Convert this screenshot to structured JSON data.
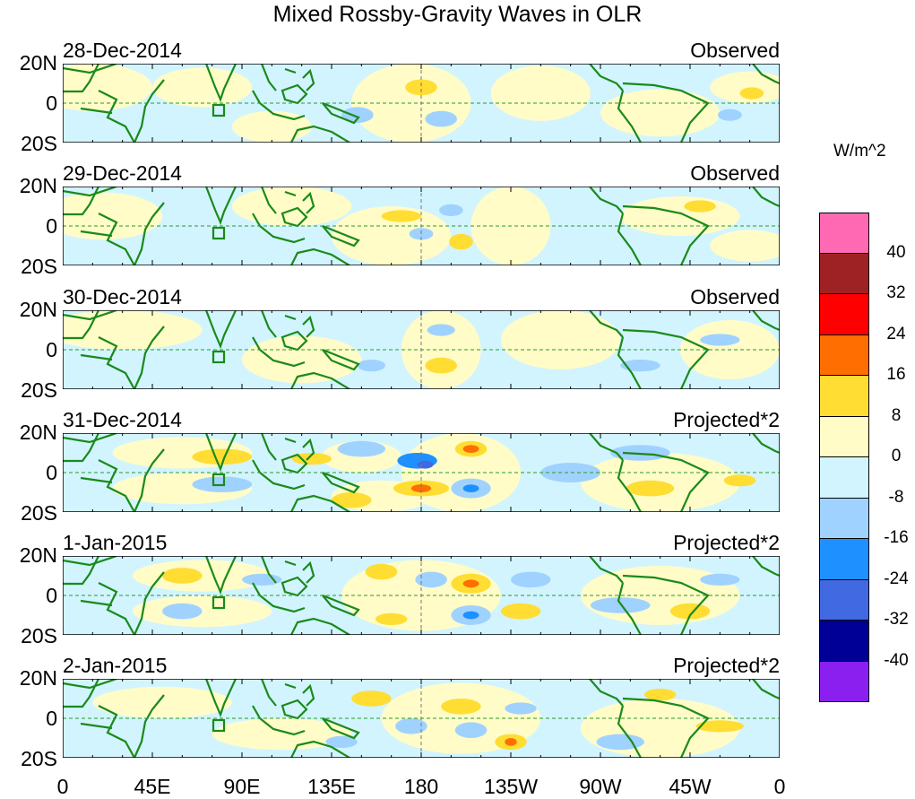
{
  "chart_data": {
    "type": "heatmap",
    "title": "Mixed Rossby-Gravity Waves in OLR",
    "units": "W/m^2",
    "xticks": [
      "0",
      "45E",
      "90E",
      "135E",
      "180",
      "135W",
      "90W",
      "45W",
      "0"
    ],
    "yticks": [
      "20N",
      "0",
      "20S"
    ],
    "xlim": [
      0,
      360
    ],
    "ylim": [
      -20,
      20
    ],
    "colorbar": {
      "levels": [
        "40",
        "32",
        "24",
        "16",
        "8",
        "0",
        "-8",
        "-16",
        "-24",
        "-32",
        "-40"
      ],
      "colors": [
        "#FF69B4",
        "#9E2224",
        "#FF0000",
        "#FF6E00",
        "#FFDD33",
        "#FFFCC8",
        "#D2F4FF",
        "#A0D2FF",
        "#1E90FF",
        "#4169E1",
        "#000096",
        "#8B1FF0"
      ]
    },
    "panels": [
      {
        "date": "28-Dec-2014",
        "type": "Observed",
        "blobs": [
          [
            15,
            8,
            30,
            12,
            4
          ],
          [
            70,
            8,
            25,
            10,
            4
          ],
          [
            105,
            -12,
            20,
            8,
            4
          ],
          [
            175,
            0,
            30,
            20,
            4
          ],
          [
            240,
            5,
            25,
            14,
            4
          ],
          [
            300,
            -5,
            30,
            12,
            4
          ],
          [
            345,
            8,
            20,
            8,
            4
          ],
          [
            180,
            8,
            8,
            4,
            12
          ],
          [
            190,
            -8,
            8,
            4,
            -10
          ],
          [
            148,
            -6,
            8,
            4,
            -10
          ],
          [
            346,
            5,
            6,
            3,
            12
          ],
          [
            335,
            -6,
            6,
            3,
            -10
          ]
        ]
      },
      {
        "date": "29-Dec-2014",
        "type": "Observed",
        "blobs": [
          [
            20,
            5,
            30,
            12,
            4
          ],
          [
            115,
            10,
            30,
            10,
            4
          ],
          [
            165,
            -5,
            30,
            15,
            4
          ],
          [
            225,
            0,
            20,
            20,
            4
          ],
          [
            310,
            5,
            30,
            10,
            4
          ],
          [
            345,
            -10,
            20,
            8,
            4
          ],
          [
            170,
            5,
            10,
            3,
            12
          ],
          [
            195,
            8,
            6,
            3,
            -10
          ],
          [
            200,
            -8,
            6,
            4,
            12
          ],
          [
            180,
            -4,
            6,
            3,
            -10
          ],
          [
            320,
            10,
            8,
            3,
            12
          ]
        ]
      },
      {
        "date": "30-Dec-2014",
        "type": "Observed",
        "blobs": [
          [
            30,
            10,
            40,
            10,
            4
          ],
          [
            120,
            -5,
            30,
            12,
            4
          ],
          [
            190,
            0,
            20,
            20,
            4
          ],
          [
            250,
            5,
            30,
            15,
            4
          ],
          [
            335,
            0,
            25,
            15,
            4
          ],
          [
            190,
            -8,
            8,
            4,
            12
          ],
          [
            190,
            10,
            7,
            3,
            -10
          ],
          [
            155,
            -8,
            7,
            3,
            -10
          ],
          [
            330,
            5,
            10,
            3,
            -10
          ],
          [
            290,
            -8,
            10,
            3,
            -10
          ]
        ]
      },
      {
        "date": "31-Dec-2014",
        "type": "Projected*2",
        "blobs": [
          [
            60,
            10,
            35,
            8,
            4
          ],
          [
            60,
            -8,
            35,
            8,
            4
          ],
          [
            150,
            8,
            20,
            8,
            4
          ],
          [
            160,
            -12,
            25,
            8,
            4
          ],
          [
            200,
            0,
            30,
            20,
            4
          ],
          [
            300,
            -5,
            40,
            15,
            4
          ],
          [
            80,
            8,
            15,
            4,
            12
          ],
          [
            80,
            -6,
            15,
            4,
            -10
          ],
          [
            125,
            7,
            10,
            3,
            12
          ],
          [
            150,
            12,
            12,
            4,
            -10
          ],
          [
            178,
            6,
            10,
            4,
            -16
          ],
          [
            182,
            4,
            4,
            2,
            -24
          ],
          [
            180,
            -8,
            14,
            4,
            12
          ],
          [
            180,
            -8,
            5,
            2,
            20
          ],
          [
            205,
            12,
            8,
            4,
            12
          ],
          [
            205,
            12,
            4,
            2,
            20
          ],
          [
            205,
            -8,
            10,
            5,
            -10
          ],
          [
            205,
            -8,
            4,
            2,
            -20
          ],
          [
            145,
            -14,
            10,
            4,
            12
          ],
          [
            255,
            0,
            15,
            5,
            -10
          ],
          [
            290,
            10,
            15,
            4,
            -10
          ],
          [
            295,
            -8,
            12,
            4,
            12
          ],
          [
            340,
            -4,
            8,
            3,
            12
          ]
        ]
      },
      {
        "date": "1-Jan-2015",
        "type": "Projected*2",
        "blobs": [
          [
            70,
            10,
            35,
            8,
            4
          ],
          [
            70,
            -8,
            35,
            8,
            4
          ],
          [
            180,
            0,
            40,
            18,
            4
          ],
          [
            300,
            0,
            40,
            15,
            4
          ],
          [
            60,
            10,
            10,
            4,
            12
          ],
          [
            60,
            -8,
            10,
            4,
            -10
          ],
          [
            100,
            8,
            10,
            3,
            -10
          ],
          [
            160,
            12,
            8,
            4,
            12
          ],
          [
            165,
            -12,
            8,
            3,
            12
          ],
          [
            185,
            8,
            8,
            4,
            -10
          ],
          [
            205,
            6,
            10,
            5,
            12
          ],
          [
            205,
            6,
            4,
            2,
            20
          ],
          [
            205,
            -10,
            10,
            5,
            -10
          ],
          [
            205,
            -10,
            4,
            2,
            -20
          ],
          [
            230,
            -8,
            10,
            4,
            12
          ],
          [
            235,
            8,
            10,
            4,
            -10
          ],
          [
            280,
            -5,
            15,
            4,
            -10
          ],
          [
            315,
            -8,
            10,
            4,
            12
          ],
          [
            330,
            8,
            10,
            3,
            -10
          ]
        ]
      },
      {
        "date": "2-Jan-2015",
        "type": "Projected*2",
        "blobs": [
          [
            50,
            8,
            35,
            8,
            4
          ],
          [
            110,
            -8,
            35,
            8,
            4
          ],
          [
            200,
            0,
            40,
            18,
            4
          ],
          [
            300,
            -5,
            40,
            15,
            4
          ],
          [
            155,
            10,
            10,
            4,
            12
          ],
          [
            175,
            -4,
            8,
            4,
            -10
          ],
          [
            200,
            6,
            10,
            4,
            12
          ],
          [
            205,
            -6,
            8,
            4,
            -10
          ],
          [
            225,
            -12,
            8,
            4,
            12
          ],
          [
            225,
            -12,
            3,
            2,
            20
          ],
          [
            230,
            5,
            8,
            3,
            -10
          ],
          [
            140,
            -12,
            8,
            3,
            -10
          ],
          [
            280,
            -12,
            12,
            4,
            -10
          ],
          [
            300,
            12,
            8,
            3,
            12
          ],
          [
            330,
            -4,
            12,
            3,
            12
          ]
        ]
      }
    ]
  }
}
